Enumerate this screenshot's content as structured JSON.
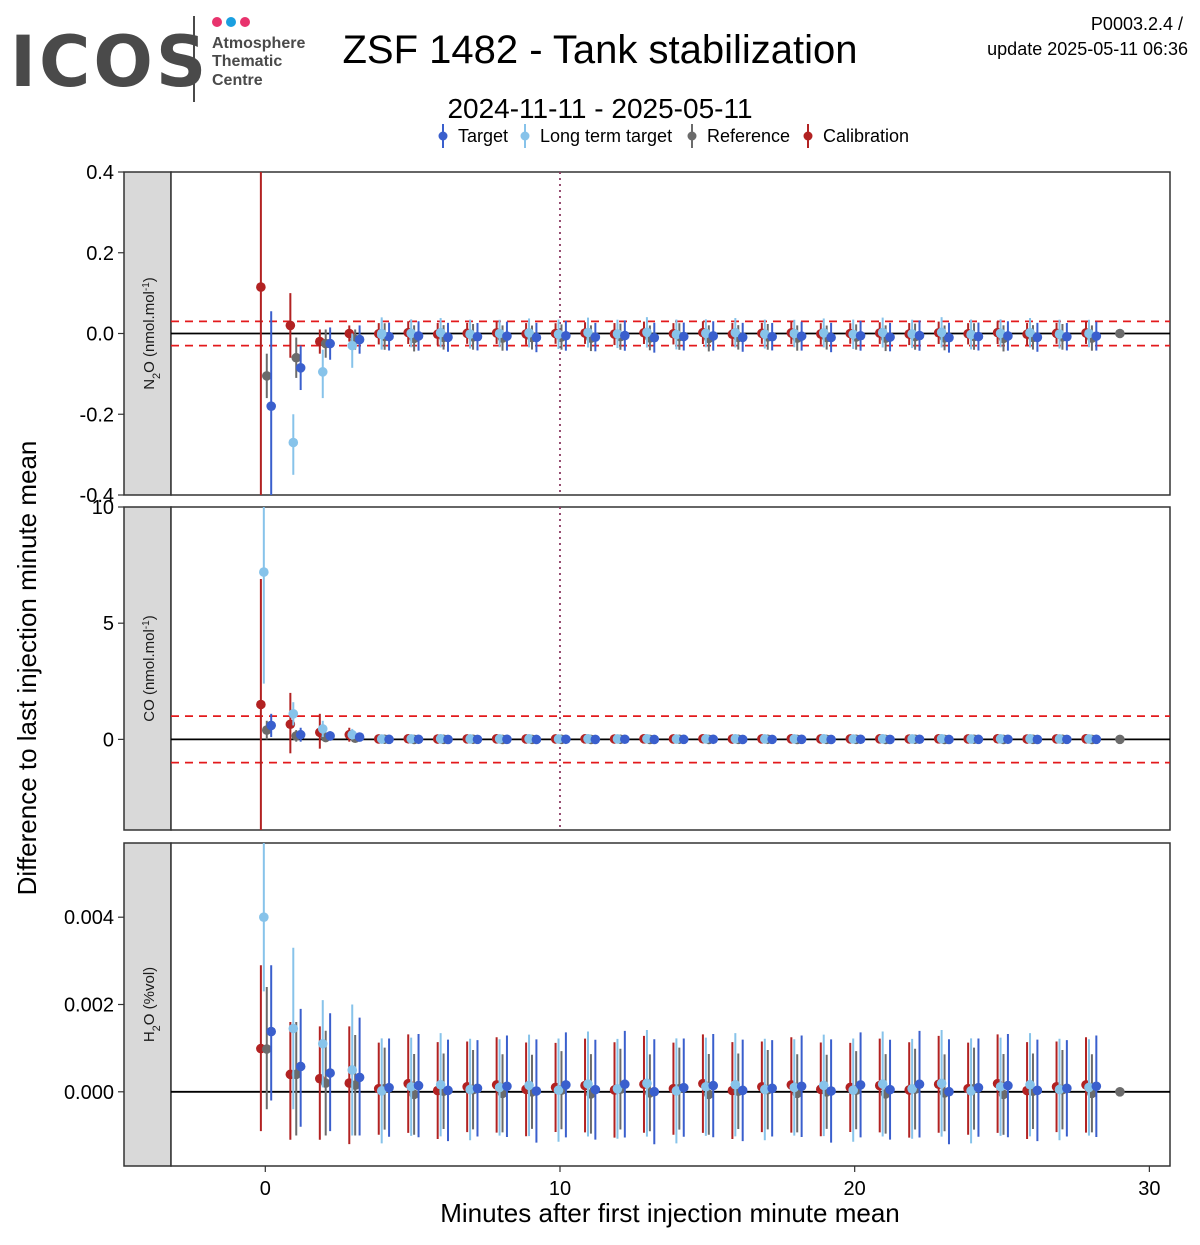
{
  "header": {
    "logo_text": "ICOS",
    "logo_sub": [
      "Atmosphere",
      "Thematic",
      "Centre"
    ],
    "logo_dot_colors": [
      "#e8336d",
      "#1a9fe0",
      "#e8336d"
    ],
    "title": "ZSF 1482 - Tank stabilization",
    "subtitle": "2024-11-11 - 2025-05-11",
    "version": "P0003.2.4 /",
    "update": "update  2025-05-11 06:36"
  },
  "chart_data": {
    "type": "scatter",
    "xlabel": "Minutes after first injection minute mean",
    "ylabel": "Difference to last injection minute mean",
    "xlim": [
      -3.2,
      30.7
    ],
    "xticks": [
      0,
      10,
      20,
      30
    ],
    "vline_x": 10,
    "legend": {
      "position": "top",
      "entries": [
        {
          "key": "target",
          "label": "Target",
          "color": "#3a5fcd"
        },
        {
          "key": "ltt",
          "label": "Long term target",
          "color": "#87c3ea"
        },
        {
          "key": "ref",
          "label": "Reference",
          "color": "#6b6b6b"
        },
        {
          "key": "cal",
          "label": "Calibration",
          "color": "#b22222"
        }
      ]
    },
    "panels": [
      {
        "strip": "N2O (nmol.mol-1)",
        "strip_main": "N",
        "strip_sub": "2",
        "strip_rest": "O (nmol.mol",
        "strip_sup": "-1",
        "strip_end": ")",
        "ylim": [
          -0.4,
          0.4
        ],
        "yticks": [
          0.4,
          0.2,
          0.0,
          -0.2,
          -0.4
        ],
        "ytick_labels": [
          "0.4",
          "0.2",
          "0.0",
          "-0.2",
          "-0.4"
        ],
        "band": 0.03,
        "early": {
          "cal": [
            [
              -0.15,
              0.115,
              0.4,
              -0.4
            ],
            [
              0.85,
              0.02,
              0.1,
              -0.06
            ],
            [
              1.85,
              -0.02,
              0.01,
              -0.05
            ],
            [
              2.85,
              0.0,
              0.02,
              -0.02
            ]
          ],
          "ref": [
            [
              0.05,
              -0.105,
              -0.05,
              -0.16
            ],
            [
              1.05,
              -0.06,
              -0.01,
              -0.11
            ],
            [
              2.05,
              -0.025,
              0.01,
              -0.06
            ],
            [
              3.05,
              -0.015,
              0.01,
              -0.04
            ]
          ],
          "ltt": [
            [
              0.95,
              -0.27,
              -0.2,
              -0.35
            ],
            [
              1.95,
              -0.095,
              -0.04,
              -0.16
            ],
            [
              2.95,
              -0.03,
              0.0,
              -0.085
            ],
            [
              3.95,
              0.0,
              0.04,
              -0.04
            ]
          ],
          "target": [
            [
              0.2,
              -0.18,
              0.055,
              -0.4
            ],
            [
              1.2,
              -0.085,
              -0.03,
              -0.14
            ],
            [
              2.2,
              -0.025,
              0.015,
              -0.065
            ],
            [
              3.2,
              -0.015,
              0.02,
              -0.05
            ]
          ]
        },
        "rest": {
          "cal": [
            0.0,
            0.03
          ],
          "ref": [
            -0.01,
            0.035
          ],
          "ltt": [
            0.0,
            0.04
          ],
          "target": [
            -0.008,
            0.04
          ]
        }
      },
      {
        "strip": "CO (nmol.mol-1)",
        "strip_main": "CO (nmol.mol",
        "strip_sub": "",
        "strip_rest": "",
        "strip_sup": "-1",
        "strip_end": ")",
        "ylim": [
          -3.9,
          10.0
        ],
        "yticks": [
          10,
          5,
          0
        ],
        "ytick_labels": [
          "10",
          "5",
          "0"
        ],
        "band": 1.0,
        "early": {
          "cal": [
            [
              -0.15,
              1.5,
              6.9,
              -3.9
            ],
            [
              0.85,
              0.65,
              2.0,
              -0.6
            ],
            [
              1.85,
              0.3,
              1.1,
              -0.4
            ],
            [
              2.85,
              0.2,
              0.5,
              -0.1
            ]
          ],
          "ref": [
            [
              0.05,
              0.4,
              0.8,
              0.0
            ],
            [
              1.05,
              0.15,
              0.4,
              -0.1
            ],
            [
              2.05,
              0.08,
              0.3,
              -0.1
            ],
            [
              3.05,
              0.05,
              0.2,
              -0.1
            ]
          ],
          "ltt": [
            [
              -0.05,
              7.2,
              10.0,
              2.4
            ],
            [
              0.95,
              1.1,
              1.6,
              0.6
            ],
            [
              1.95,
              0.45,
              0.8,
              0.1
            ],
            [
              2.95,
              0.2,
              0.45,
              0.0
            ]
          ],
          "target": [
            [
              0.2,
              0.6,
              1.1,
              0.1
            ],
            [
              1.2,
              0.2,
              0.5,
              -0.1
            ],
            [
              2.2,
              0.15,
              0.35,
              -0.05
            ],
            [
              3.2,
              0.1,
              0.25,
              -0.05
            ]
          ]
        },
        "rest": {
          "cal": [
            0.02,
            0.08
          ],
          "ref": [
            0.0,
            0.08
          ],
          "ltt": [
            0.02,
            0.08
          ],
          "target": [
            0.0,
            0.08
          ]
        }
      },
      {
        "strip": "H2O (%vol)",
        "strip_main": "H",
        "strip_sub": "2",
        "strip_rest": "O (%vol)",
        "strip_sup": "",
        "strip_end": "",
        "ylim": [
          -0.0017,
          0.0057
        ],
        "yticks": [
          0.004,
          0.002,
          0.0
        ],
        "ytick_labels": [
          "0.004",
          "0.002",
          "0.000"
        ],
        "band": null,
        "early": {
          "cal": [
            [
              -0.15,
              0.00099,
              0.0029,
              -0.0009
            ],
            [
              0.85,
              0.0004,
              0.0016,
              -0.0011
            ],
            [
              1.85,
              0.0003,
              0.0015,
              -0.0011
            ],
            [
              2.85,
              0.0002,
              0.0015,
              -0.0012
            ]
          ],
          "ref": [
            [
              0.05,
              0.00098,
              0.0024,
              -0.0004
            ],
            [
              1.05,
              0.0004,
              0.0016,
              -0.001
            ],
            [
              2.05,
              0.0002,
              0.0014,
              -0.001
            ],
            [
              3.05,
              0.00015,
              0.0013,
              -0.001
            ]
          ],
          "ltt": [
            [
              -0.05,
              0.004,
              0.0057,
              0.0023
            ],
            [
              0.95,
              0.00145,
              0.0033,
              -0.0004
            ],
            [
              1.95,
              0.0011,
              0.0021,
              0.0001
            ],
            [
              2.95,
              0.0005,
              0.002,
              -0.001
            ]
          ],
          "target": [
            [
              0.2,
              0.00138,
              0.0029,
              -0.0002
            ],
            [
              1.2,
              0.00058,
              0.0019,
              -0.0008
            ],
            [
              2.2,
              0.00043,
              0.0018,
              -0.0009
            ],
            [
              3.2,
              0.00033,
              0.0017,
              -0.001
            ]
          ]
        },
        "rest": {
          "cal": [
            0.0001,
            0.0012
          ],
          "ref": [
            0.0,
            0.001
          ],
          "ltt": [
            0.0001,
            0.0013
          ],
          "target": [
            8e-05,
            0.0013
          ]
        }
      }
    ],
    "last_point": {
      "x": 29,
      "y": 0,
      "series": "ref"
    }
  }
}
